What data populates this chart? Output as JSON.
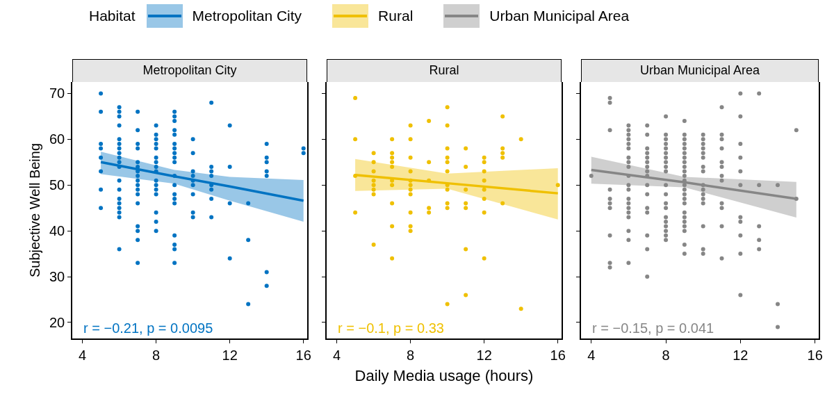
{
  "chart_data": [
    {
      "type": "scatter",
      "title": "Metropolitan City",
      "ylabel": "Subjective Well Being",
      "legend_title": "Habitat",
      "legend": "top",
      "xlim": [
        3.45,
        16.2
      ],
      "xticks": [
        4,
        8,
        12,
        16
      ],
      "ylim": [
        16.5,
        72.5
      ],
      "yticks": [
        20,
        30,
        40,
        50,
        60,
        70
      ],
      "annotations": [
        "r = −0.21, p = 0.0095"
      ],
      "series": [
        {
          "name": "Metropolitan City",
          "marker": "circle",
          "color": "#0073c2",
          "x": [
            5,
            5,
            5,
            5,
            5,
            5,
            5,
            5,
            6,
            6,
            6,
            6,
            6,
            6,
            6,
            6,
            6,
            6,
            6,
            6,
            6,
            6,
            6,
            6,
            6,
            6,
            6,
            7,
            7,
            7,
            7,
            7,
            7,
            7,
            7,
            7,
            7,
            7,
            7,
            7,
            7,
            7,
            7,
            7,
            8,
            8,
            8,
            8,
            8,
            8,
            8,
            8,
            8,
            8,
            8,
            8,
            8,
            8,
            8,
            8,
            9,
            9,
            9,
            9,
            9,
            9,
            9,
            9,
            9,
            9,
            9,
            9,
            9,
            9,
            9,
            9,
            9,
            9,
            9,
            10,
            10,
            10,
            10,
            10,
            10,
            10,
            10,
            10,
            11,
            11,
            11,
            11,
            11,
            11,
            11,
            11,
            12,
            12,
            12,
            12,
            13,
            13,
            13,
            14,
            14,
            14,
            14,
            14,
            14,
            14,
            16,
            16
          ],
          "values": [
            70,
            66,
            59,
            58,
            56,
            53,
            49,
            45,
            67,
            66,
            65,
            63,
            60,
            59,
            58,
            57,
            56,
            55,
            54,
            51,
            49,
            47,
            46,
            45,
            44,
            43,
            36,
            66,
            62,
            59,
            58,
            55,
            54,
            53,
            52,
            51,
            50,
            49,
            48,
            46,
            41,
            40,
            38,
            33,
            63,
            61,
            60,
            59,
            58,
            56,
            55,
            54,
            53,
            51,
            50,
            49,
            48,
            44,
            42,
            40,
            66,
            65,
            64,
            62,
            61,
            59,
            58,
            57,
            56,
            55,
            52,
            50,
            48,
            47,
            46,
            39,
            37,
            36,
            33,
            60,
            57,
            53,
            52,
            51,
            50,
            48,
            44,
            43,
            68,
            54,
            53,
            52,
            50,
            49,
            47,
            43,
            63,
            54,
            46,
            34,
            46,
            38,
            24,
            59,
            56,
            55,
            53,
            52,
            31,
            28,
            58,
            57
          ]
        },
        {
          "type": "line",
          "marker": "none",
          "color": "#0073c2",
          "x": [
            5,
            9,
            12,
            16
          ],
          "values": [
            55,
            51.9,
            49.7,
            46.6
          ],
          "lower": [
            52.4,
            50.3,
            46.6,
            42
          ],
          "upper": [
            57.3,
            53.3,
            51.8,
            51.1
          ]
        }
      ]
    },
    {
      "type": "scatter",
      "title": "Rural",
      "xlabel": "Daily Media usage (hours)",
      "legend": "top",
      "tick_labels": "x",
      "xlim": [
        3.45,
        16.2
      ],
      "xticks": [
        4,
        8,
        12,
        16
      ],
      "ylim": [
        16.5,
        72.5
      ],
      "yticks": [
        20,
        30,
        40,
        50,
        60,
        70
      ],
      "annotations": [
        "r = −0.1, p = 0.33"
      ],
      "series": [
        {
          "name": "Rural",
          "marker": "circle",
          "color": "#efc000",
          "x": [
            5,
            5,
            5,
            5,
            6,
            6,
            6,
            6,
            6,
            6,
            6,
            6,
            7,
            7,
            7,
            7,
            7,
            7,
            7,
            7,
            7,
            7,
            8,
            8,
            8,
            8,
            8,
            8,
            8,
            8,
            8,
            8,
            8,
            9,
            9,
            9,
            9,
            9,
            10,
            10,
            10,
            10,
            10,
            10,
            10,
            10,
            10,
            10,
            10,
            11,
            11,
            11,
            11,
            11,
            11,
            11,
            12,
            12,
            12,
            12,
            12,
            12,
            12,
            12,
            13,
            13,
            13,
            13,
            13,
            14,
            14,
            16
          ],
          "values": [
            69,
            60,
            52,
            44,
            57,
            55,
            53,
            51,
            50,
            49,
            48,
            37,
            60,
            57,
            56,
            55,
            54,
            51,
            50,
            46,
            41,
            34,
            63,
            60,
            56,
            53,
            51,
            50,
            49,
            48,
            44,
            41,
            40,
            64,
            55,
            51,
            45,
            44,
            67,
            63,
            58,
            56,
            55,
            53,
            50,
            49,
            46,
            45,
            24,
            58,
            54,
            49,
            46,
            45,
            36,
            26,
            56,
            55,
            53,
            51,
            49,
            47,
            44,
            34,
            65,
            58,
            57,
            56,
            46,
            60,
            23,
            50
          ]
        },
        {
          "type": "line",
          "marker": "none",
          "color": "#efc000",
          "x": [
            5,
            10,
            16
          ],
          "values": [
            52.2,
            50.4,
            48.2
          ],
          "lower": [
            48.7,
            49.2,
            42.5
          ],
          "upper": [
            55.7,
            52.5,
            53.7
          ]
        }
      ]
    },
    {
      "type": "scatter",
      "title": "Urban Municipal Area",
      "legend": "top",
      "tick_labels": "x",
      "xlim": [
        3.45,
        16.2
      ],
      "xticks": [
        4,
        8,
        12,
        16
      ],
      "ylim": [
        16.5,
        72.5
      ],
      "yticks": [
        20,
        30,
        40,
        50,
        60,
        70
      ],
      "annotations": [
        "r = −0.15, p = 0.041"
      ],
      "series": [
        {
          "name": "Urban Municipal Area",
          "marker": "circle",
          "color": "#868686",
          "x": [
            4,
            5,
            5,
            5,
            5,
            5,
            5,
            5,
            5,
            5,
            5,
            6,
            6,
            6,
            6,
            6,
            6,
            6,
            6,
            6,
            6,
            6,
            6,
            6,
            6,
            6,
            6,
            6,
            6,
            6,
            6,
            7,
            7,
            7,
            7,
            7,
            7,
            7,
            7,
            7,
            7,
            7,
            7,
            7,
            7,
            7,
            7,
            8,
            8,
            8,
            8,
            8,
            8,
            8,
            8,
            8,
            8,
            8,
            8,
            8,
            8,
            8,
            8,
            8,
            8,
            8,
            8,
            9,
            9,
            9,
            9,
            9,
            9,
            9,
            9,
            9,
            9,
            9,
            9,
            9,
            9,
            9,
            9,
            9,
            9,
            9,
            9,
            9,
            9,
            9,
            9,
            10,
            10,
            10,
            10,
            10,
            10,
            10,
            10,
            10,
            10,
            10,
            10,
            10,
            10,
            10,
            10,
            11,
            11,
            11,
            11,
            11,
            11,
            11,
            11,
            11,
            11,
            11,
            11,
            12,
            12,
            12,
            12,
            12,
            12,
            12,
            12,
            12,
            12,
            12,
            13,
            13,
            13,
            13,
            13,
            14,
            14,
            14,
            15,
            15
          ],
          "values": [
            52,
            69,
            68,
            62,
            49,
            47,
            46,
            45,
            39,
            33,
            32,
            63,
            62,
            61,
            60,
            59,
            58,
            56,
            55,
            54,
            52,
            50,
            49,
            47,
            46,
            45,
            44,
            43,
            40,
            38,
            33,
            63,
            61,
            58,
            57,
            56,
            55,
            54,
            53,
            52,
            50,
            48,
            45,
            44,
            39,
            36,
            30,
            65,
            61,
            60,
            59,
            58,
            57,
            56,
            55,
            54,
            53,
            50,
            48,
            46,
            45,
            43,
            42,
            41,
            40,
            39,
            38,
            64,
            61,
            60,
            59,
            58,
            57,
            56,
            55,
            54,
            53,
            52,
            51,
            50,
            49,
            48,
            47,
            46,
            44,
            43,
            42,
            41,
            40,
            37,
            35,
            61,
            60,
            59,
            58,
            57,
            56,
            54,
            53,
            50,
            49,
            48,
            47,
            46,
            41,
            36,
            35,
            67,
            61,
            60,
            58,
            55,
            54,
            52,
            51,
            46,
            45,
            41,
            34,
            70,
            65,
            59,
            56,
            53,
            50,
            43,
            42,
            39,
            35,
            26,
            70,
            50,
            41,
            38,
            36,
            50,
            24,
            19,
            62,
            47
          ]
        },
        {
          "type": "line",
          "marker": "none",
          "color": "#868686",
          "x": [
            4,
            9,
            15
          ],
          "values": [
            53.3,
            50.6,
            47
          ],
          "lower": [
            50.3,
            49.5,
            42.9
          ],
          "upper": [
            56.2,
            51.8,
            50.7
          ]
        }
      ]
    }
  ]
}
